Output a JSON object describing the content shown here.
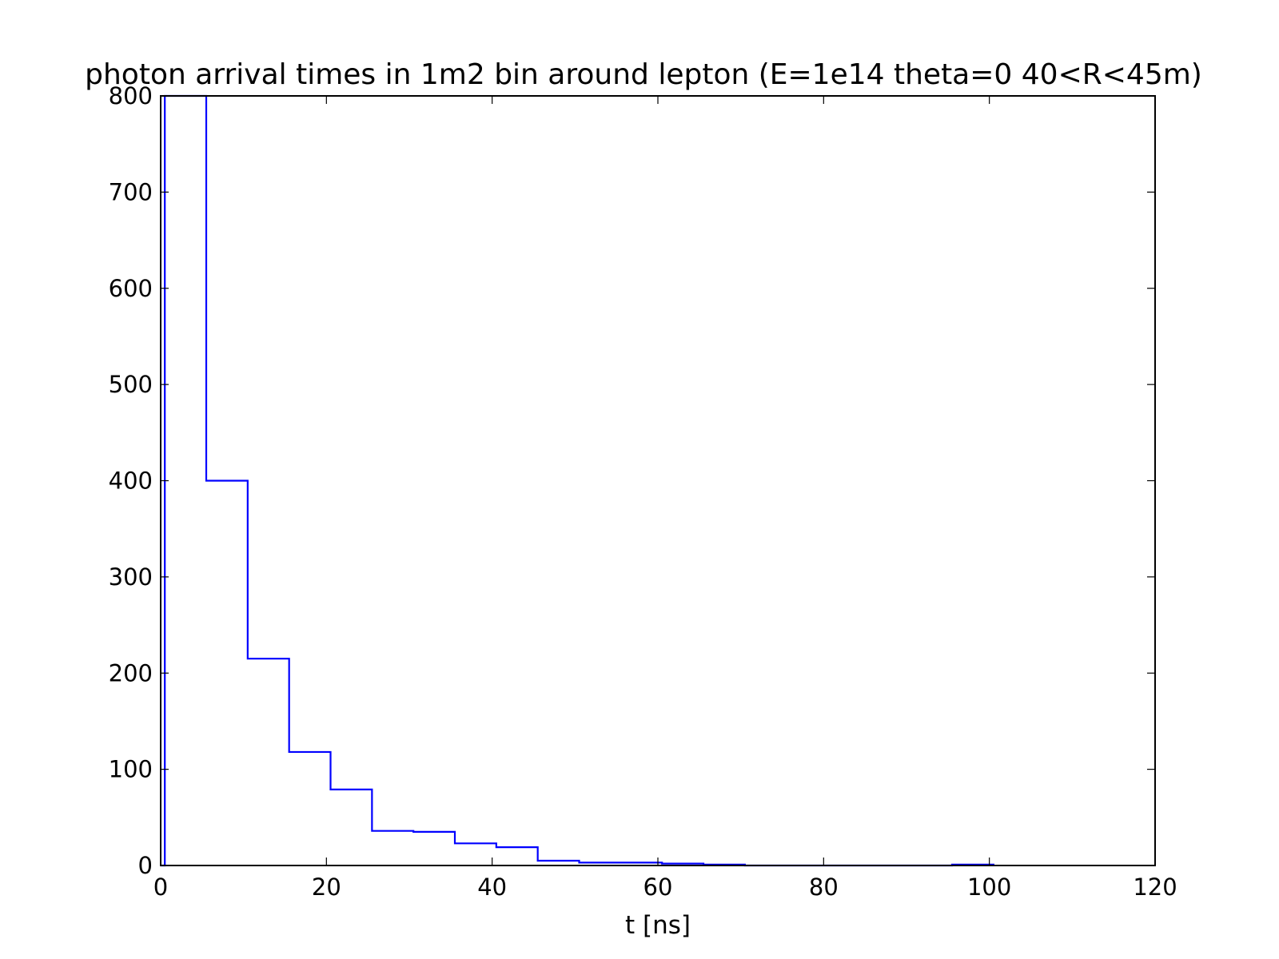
{
  "chart_data": {
    "type": "histogram",
    "title": "photon arrival times in 1m2 bin around lepton (E=1e14 theta=0 40<R<45m)",
    "xlabel": "t [ns]",
    "ylabel": "",
    "xlim": [
      0,
      120
    ],
    "ylim": [
      0,
      800
    ],
    "xticks": [
      0,
      20,
      40,
      60,
      80,
      100,
      120
    ],
    "yticks": [
      0,
      100,
      200,
      300,
      400,
      500,
      600,
      700,
      800
    ],
    "xtick_labels": [
      "0",
      "20",
      "40",
      "60",
      "80",
      "100",
      "120"
    ],
    "ytick_labels": [
      "0",
      "100",
      "200",
      "300",
      "400",
      "500",
      "600",
      "700",
      "800"
    ],
    "grid": false,
    "line_color": "#0000ff",
    "series": [
      {
        "bin_edges": [
          0,
          0.5,
          5.5,
          10.5,
          15.5,
          20.5,
          25.5,
          30.5,
          35.5,
          40.5,
          45.5,
          50.5,
          55.5,
          60.5,
          65.5,
          70.5,
          75.5,
          80.5,
          85.5,
          90.5,
          95.5,
          100.5
        ],
        "counts": [
          0,
          800,
          400,
          215,
          118,
          79,
          36,
          35,
          23,
          19,
          5,
          3,
          3,
          2,
          1,
          0,
          0,
          0,
          0,
          0,
          1
        ]
      }
    ]
  }
}
